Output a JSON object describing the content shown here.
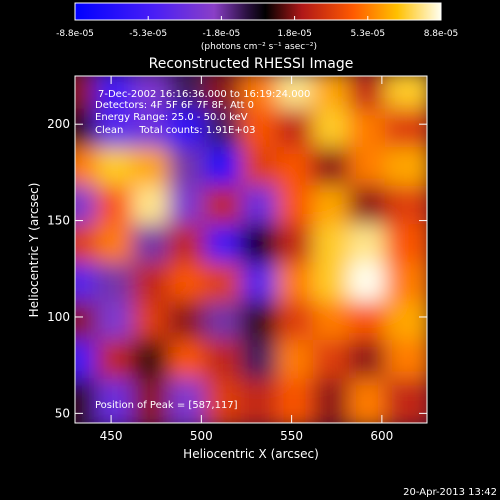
{
  "chart_data": {
    "type": "heatmap",
    "title": "Reconstructed RHESSI Image",
    "xlabel": "Heliocentric X (arcsec)",
    "ylabel": "Heliocentric Y (arcsec)",
    "xlim": [
      430,
      625
    ],
    "ylim": [
      45,
      225
    ],
    "x_ticks": [
      450,
      500,
      550,
      600
    ],
    "y_ticks": [
      50,
      100,
      150,
      200
    ],
    "colorbar": {
      "ticks": [
        "-8.8e-05",
        "-5.3e-05",
        "-1.8e-05",
        "1.8e-05",
        "5.3e-05",
        "8.8e-05"
      ],
      "range": [
        -8.8e-05,
        8.8e-05
      ],
      "unit_label": "(photons cm⁻² s⁻¹ asec⁻²)"
    },
    "annotations": {
      "time_range": "7-Dec-2002 16:16:36.000 to 16:19:24.000",
      "detectors": "Detectors: 4F 5F 6F 7F 8F, Att 0",
      "energy_range": "Energy Range: 25.0 - 50.0 keV",
      "method_counts": "Clean     Total counts: 1.91E+03",
      "peak": "Position of Peak = [587,117]"
    },
    "peak_position": [
      587,
      117
    ],
    "value_grid": {
      "x": [
        435,
        455,
        475,
        495,
        515,
        535,
        555,
        575,
        595,
        615
      ],
      "y": [
        215,
        195,
        175,
        155,
        135,
        115,
        95,
        75,
        55
      ],
      "z": [
        [
          0.2,
          -0.6,
          -0.3,
          -0.1,
          0.2,
          0.6,
          0.9,
          0.7,
          0.3,
          0.8
        ],
        [
          0.1,
          -0.5,
          -0.4,
          -0.7,
          -0.1,
          0.5,
          0.3,
          0.8,
          0.6,
          0.4
        ],
        [
          0.6,
          0.8,
          0.7,
          -0.2,
          -0.8,
          0.4,
          0.5,
          0.2,
          0.6,
          0.7
        ],
        [
          -0.3,
          0.5,
          0.9,
          -0.3,
          0.3,
          -0.4,
          0.5,
          0.7,
          0.2,
          0.4
        ],
        [
          0.4,
          0.6,
          -0.2,
          0.3,
          -0.6,
          0.0,
          0.3,
          0.8,
          0.9,
          0.5
        ],
        [
          -0.5,
          -0.2,
          0.3,
          0.5,
          0.4,
          -0.5,
          0.6,
          0.8,
          1.0,
          0.6
        ],
        [
          0.2,
          -0.3,
          0.4,
          0.2,
          -0.2,
          0.1,
          0.4,
          0.6,
          0.5,
          0.7
        ],
        [
          -0.6,
          0.3,
          0.1,
          0.5,
          0.3,
          -0.1,
          0.6,
          0.4,
          0.2,
          0.6
        ],
        [
          0.1,
          -0.4,
          0.2,
          -0.3,
          0.4,
          0.3,
          0.5,
          0.2,
          0.6,
          0.3
        ]
      ]
    }
  },
  "footer": {
    "timestamp": "20-Apr-2013 13:42"
  }
}
